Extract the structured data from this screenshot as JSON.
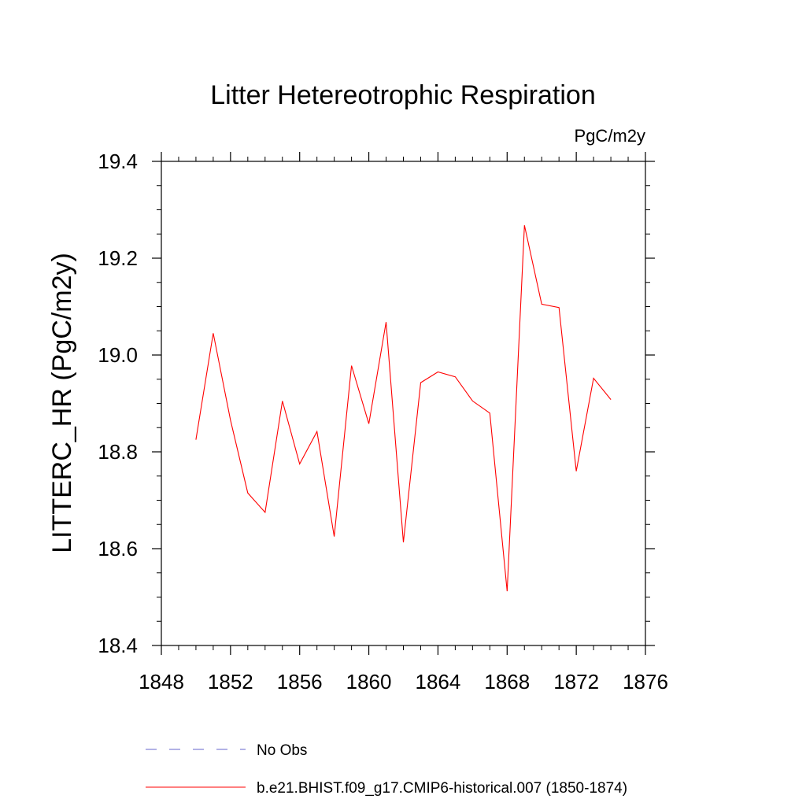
{
  "chart_data": {
    "type": "line",
    "title": "Litter Hetereotrophic Respiration",
    "units_label": "PgC/m2y",
    "xlabel": "",
    "ylabel": "LITTERC_HR  (PgC/m2y)",
    "xlim": [
      1848,
      1876
    ],
    "ylim": [
      18.4,
      19.4
    ],
    "x_ticks": [
      1848,
      1852,
      1856,
      1860,
      1864,
      1868,
      1872,
      1876
    ],
    "x_tick_labels": [
      "1848",
      "1852",
      "1856",
      "1860",
      "1864",
      "1868",
      "1872",
      "1876"
    ],
    "y_ticks": [
      18.4,
      18.6,
      18.8,
      19.0,
      19.2,
      19.4
    ],
    "y_tick_labels": [
      "18.4",
      "18.6",
      "18.8",
      "19.0",
      "19.2",
      "19.4"
    ],
    "grid": false,
    "legend_position": "bottom",
    "series": [
      {
        "name": "b.e21.BHIST.f09_g17.CMIP6-historical.007 (1850-1874)",
        "color": "#ff0000",
        "style": "solid",
        "x": [
          1850,
          1851,
          1852,
          1853,
          1854,
          1855,
          1856,
          1857,
          1858,
          1859,
          1860,
          1861,
          1862,
          1863,
          1864,
          1865,
          1866,
          1867,
          1868,
          1869,
          1870,
          1871,
          1872,
          1873,
          1874
        ],
        "values": [
          18.825,
          19.045,
          18.865,
          18.715,
          18.675,
          18.905,
          18.775,
          18.842,
          18.625,
          18.978,
          18.858,
          19.068,
          18.613,
          18.943,
          18.965,
          18.955,
          18.905,
          18.88,
          18.512,
          19.268,
          19.105,
          19.098,
          18.76,
          18.952,
          18.908
        ]
      }
    ],
    "legend": [
      {
        "label": "No Obs",
        "color": "#6666cc",
        "style": "dashed"
      },
      {
        "label": "b.e21.BHIST.f09_g17.CMIP6-historical.007 (1850-1874)",
        "color": "#ff0000",
        "style": "solid"
      }
    ]
  }
}
